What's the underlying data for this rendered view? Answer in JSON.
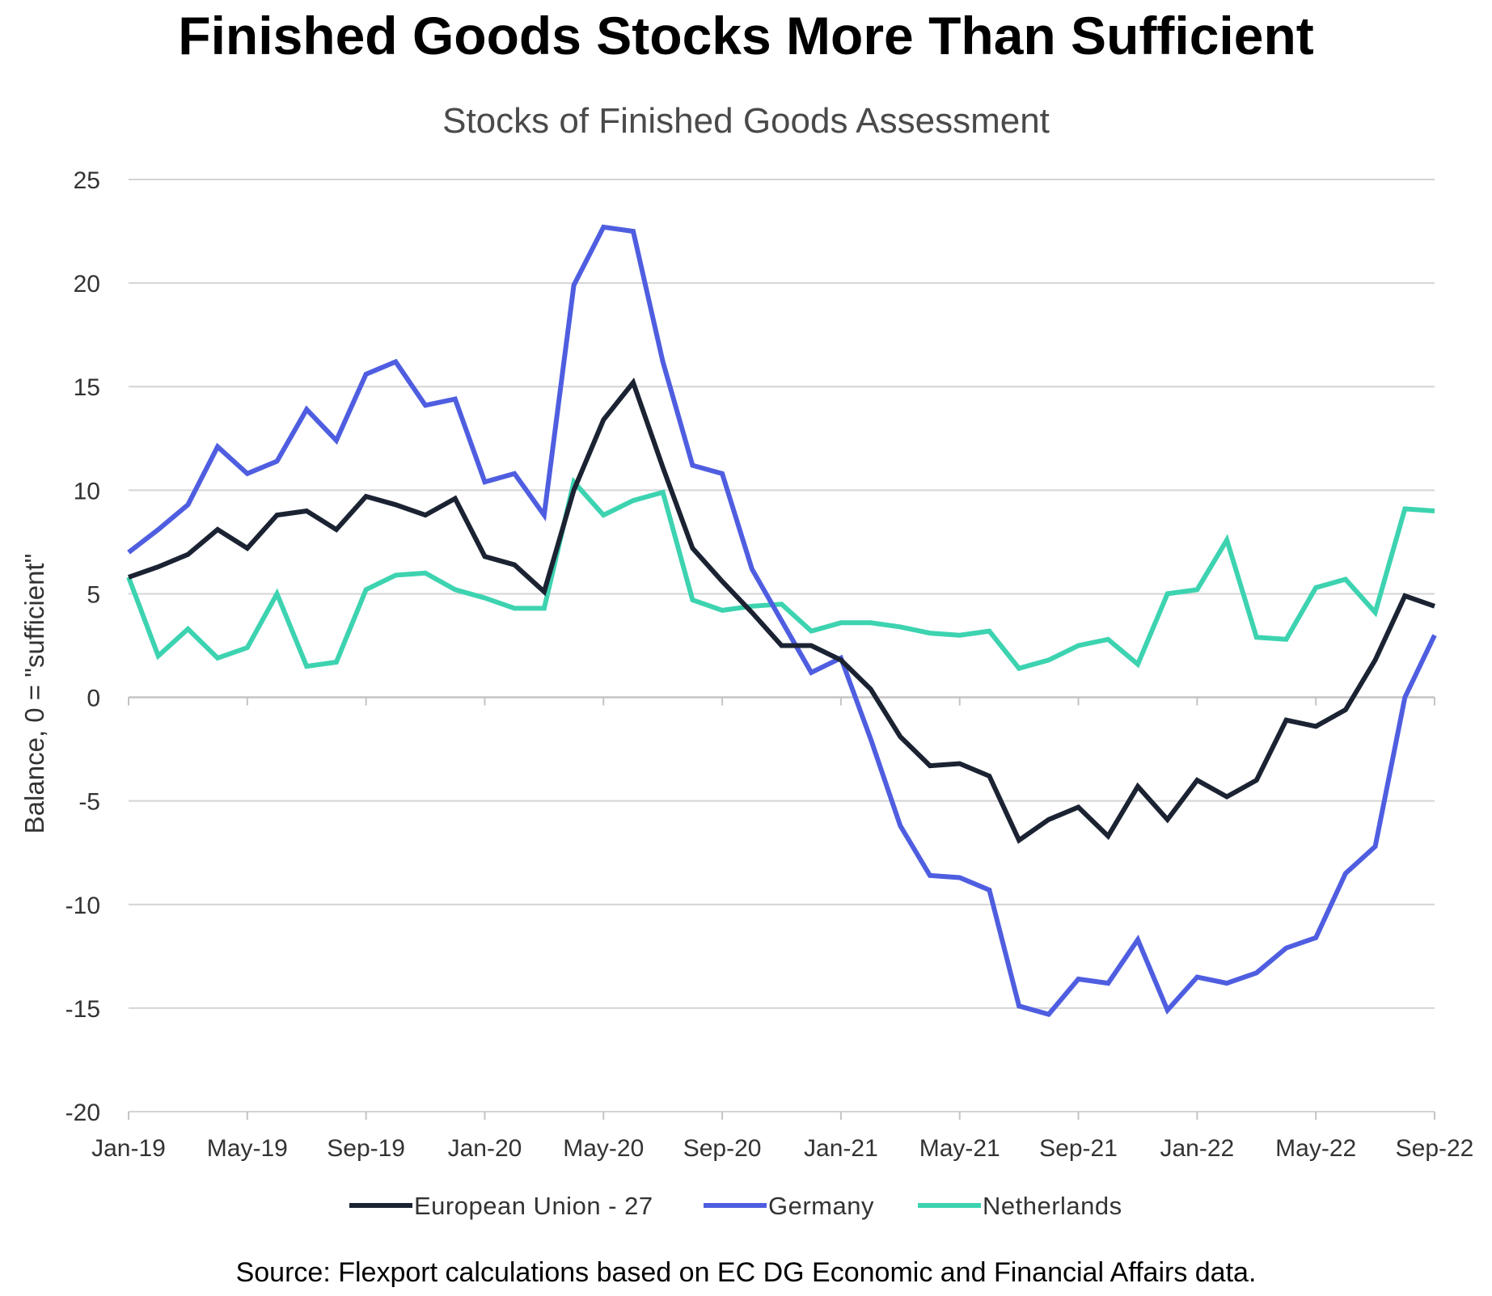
{
  "chart_data": {
    "type": "line",
    "title": "Finished Goods Stocks More Than Sufficient",
    "subtitle": "Stocks of Finished Goods Assessment",
    "xlabel": "",
    "ylabel": "Balance, 0 = \"sufficient\"",
    "ylim": [
      -20,
      25
    ],
    "yticks": [
      -20,
      -15,
      -10,
      -5,
      0,
      5,
      10,
      15,
      20,
      25
    ],
    "grid": true,
    "legend_position": "bottom",
    "source": "Source: Flexport calculations based on EC DG Economic and Financial Affairs data.",
    "x": [
      "Jan-19",
      "Feb-19",
      "Mar-19",
      "Apr-19",
      "May-19",
      "Jun-19",
      "Jul-19",
      "Aug-19",
      "Sep-19",
      "Oct-19",
      "Nov-19",
      "Dec-19",
      "Jan-20",
      "Feb-20",
      "Mar-20",
      "Apr-20",
      "May-20",
      "Jun-20",
      "Jul-20",
      "Aug-20",
      "Sep-20",
      "Oct-20",
      "Nov-20",
      "Dec-20",
      "Jan-21",
      "Feb-21",
      "Mar-21",
      "Apr-21",
      "May-21",
      "Jun-21",
      "Jul-21",
      "Aug-21",
      "Sep-21",
      "Oct-21",
      "Nov-21",
      "Dec-21",
      "Jan-22",
      "Feb-22",
      "Mar-22",
      "Apr-22",
      "May-22",
      "Jun-22",
      "Jul-22",
      "Aug-22",
      "Sep-22"
    ],
    "xtick_labels": [
      {
        "label": "Jan-19",
        "index": 0
      },
      {
        "label": "May-19",
        "index": 4
      },
      {
        "label": "Sep-19",
        "index": 8
      },
      {
        "label": "Jan-20",
        "index": 12
      },
      {
        "label": "May-20",
        "index": 16
      },
      {
        "label": "Sep-20",
        "index": 20
      },
      {
        "label": "Jan-21",
        "index": 24
      },
      {
        "label": "May-21",
        "index": 28
      },
      {
        "label": "Sep-21",
        "index": 32
      },
      {
        "label": "Jan-22",
        "index": 36
      },
      {
        "label": "May-22",
        "index": 40
      },
      {
        "label": "Sep-22",
        "index": 44
      }
    ],
    "series": [
      {
        "name": "European Union - 27",
        "color": "#1b2333",
        "values": [
          5.8,
          6.3,
          6.9,
          8.1,
          7.2,
          8.8,
          9.0,
          8.1,
          9.7,
          9.3,
          8.8,
          9.6,
          6.8,
          6.4,
          5.1,
          10.0,
          13.4,
          15.2,
          11.1,
          7.2,
          5.6,
          4.1,
          2.5,
          2.5,
          1.8,
          0.4,
          -1.9,
          -3.3,
          -3.2,
          -3.8,
          -6.9,
          -5.9,
          -5.3,
          -6.7,
          -4.3,
          -5.9,
          -4.0,
          -4.8,
          -4.0,
          -1.1,
          -1.4,
          -0.6,
          1.8,
          4.9,
          4.4
        ]
      },
      {
        "name": "Germany",
        "color": "#4f5ee0",
        "values": [
          7.0,
          8.1,
          9.3,
          12.1,
          10.8,
          11.4,
          13.9,
          12.4,
          15.6,
          16.2,
          14.1,
          14.4,
          10.4,
          10.8,
          8.8,
          19.9,
          22.7,
          22.5,
          16.2,
          11.2,
          10.8,
          6.2,
          3.7,
          1.2,
          1.9,
          -2.0,
          -6.2,
          -8.6,
          -8.7,
          -9.3,
          -14.9,
          -15.3,
          -13.6,
          -13.8,
          -11.7,
          -15.1,
          -13.5,
          -13.8,
          -13.3,
          -12.1,
          -11.6,
          -8.5,
          -7.2,
          0.0,
          3.0
        ]
      },
      {
        "name": "Netherlands",
        "color": "#3dd3b0",
        "values": [
          5.8,
          2.0,
          3.3,
          1.9,
          2.4,
          5.0,
          1.5,
          1.7,
          5.2,
          5.9,
          6.0,
          5.2,
          4.8,
          4.3,
          4.3,
          10.4,
          8.8,
          9.5,
          9.9,
          4.7,
          4.2,
          4.4,
          4.5,
          3.2,
          3.6,
          3.6,
          3.4,
          3.1,
          3.0,
          3.2,
          1.4,
          1.8,
          2.5,
          2.8,
          1.6,
          5.0,
          5.2,
          7.6,
          2.9,
          2.8,
          5.3,
          5.7,
          4.1,
          9.1,
          9.0
        ]
      }
    ]
  }
}
